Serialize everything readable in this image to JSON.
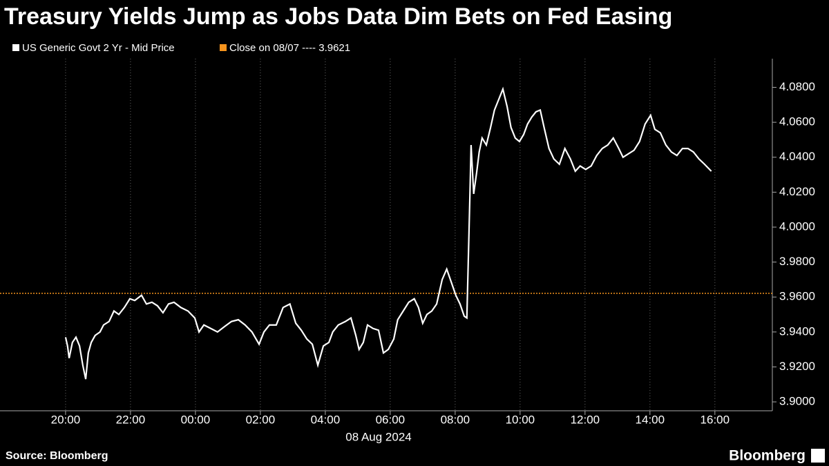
{
  "chart_data": {
    "type": "line",
    "title": "Treasury Yields Jump as Jobs Data Dim Bets on Fed Easing",
    "source": "Source: Bloomberg",
    "brand": "Bloomberg",
    "date_label": "08 Aug 2024",
    "x": [
      0,
      0.06,
      0.11,
      0.21,
      0.32,
      0.43,
      0.53,
      0.62,
      0.7,
      0.79,
      0.91,
      1.06,
      1.17,
      1.34,
      1.49,
      1.64,
      1.81,
      1.98,
      2.13,
      2.34,
      2.49,
      2.66,
      2.83,
      3.0,
      3.17,
      3.34,
      3.55,
      3.77,
      3.98,
      4.11,
      4.26,
      4.47,
      4.68,
      4.89,
      5.11,
      5.32,
      5.53,
      5.74,
      5.96,
      6.11,
      6.28,
      6.49,
      6.7,
      6.91,
      7.09,
      7.26,
      7.43,
      7.6,
      7.77,
      7.94,
      8.11,
      8.23,
      8.4,
      8.62,
      8.79,
      8.94,
      9.04,
      9.17,
      9.3,
      9.47,
      9.64,
      9.79,
      9.94,
      10.11,
      10.23,
      10.4,
      10.57,
      10.74,
      10.87,
      11.0,
      11.13,
      11.28,
      11.43,
      11.6,
      11.74,
      11.89,
      12.02,
      12.15,
      12.28,
      12.36,
      12.45,
      12.49,
      12.57,
      12.66,
      12.74,
      12.83,
      12.96,
      13.09,
      13.21,
      13.34,
      13.47,
      13.6,
      13.72,
      13.85,
      13.98,
      14.11,
      14.23,
      14.36,
      14.49,
      14.62,
      14.74,
      14.89,
      15.04,
      15.21,
      15.38,
      15.55,
      15.7,
      15.85,
      16.02,
      16.19,
      16.36,
      16.53,
      16.7,
      16.87,
      17.04,
      17.17,
      17.34,
      17.51,
      17.68,
      17.85,
      18.02,
      18.15,
      18.32,
      18.49,
      18.66,
      18.83,
      19.0,
      19.17,
      19.34,
      19.51,
      19.68,
      19.89
    ],
    "series": [
      {
        "name": "US Generic Govt 2 Yr - Mid Price",
        "color": "#ffffff",
        "values": [
          3.937,
          3.932,
          3.925,
          3.934,
          3.937,
          3.932,
          3.921,
          3.913,
          3.928,
          3.934,
          3.938,
          3.94,
          3.944,
          3.946,
          3.952,
          3.95,
          3.954,
          3.959,
          3.958,
          3.961,
          3.956,
          3.957,
          3.955,
          3.951,
          3.956,
          3.957,
          3.954,
          3.952,
          3.948,
          3.94,
          3.944,
          3.942,
          3.94,
          3.943,
          3.946,
          3.947,
          3.944,
          3.94,
          3.933,
          3.94,
          3.944,
          3.944,
          3.954,
          3.956,
          3.945,
          3.941,
          3.936,
          3.933,
          3.921,
          3.932,
          3.934,
          3.94,
          3.944,
          3.946,
          3.948,
          3.938,
          3.93,
          3.934,
          3.944,
          3.942,
          3.941,
          3.928,
          3.93,
          3.936,
          3.947,
          3.952,
          3.957,
          3.959,
          3.954,
          3.945,
          3.95,
          3.952,
          3.956,
          3.97,
          3.976,
          3.968,
          3.961,
          3.956,
          3.949,
          3.948,
          4.015,
          4.047,
          4.019,
          4.031,
          4.043,
          4.051,
          4.047,
          4.057,
          4.067,
          4.073,
          4.079,
          4.069,
          4.057,
          4.051,
          4.049,
          4.053,
          4.059,
          4.063,
          4.066,
          4.067,
          4.057,
          4.045,
          4.039,
          4.036,
          4.045,
          4.039,
          4.032,
          4.035,
          4.033,
          4.035,
          4.041,
          4.045,
          4.047,
          4.051,
          4.045,
          4.04,
          4.042,
          4.044,
          4.049,
          4.059,
          4.064,
          4.056,
          4.054,
          4.047,
          4.043,
          4.041,
          4.045,
          4.045,
          4.043,
          4.039,
          4.036,
          4.032
        ]
      }
    ],
    "reference_line": {
      "label": "Close on 08/07 ---- 3.9621",
      "value": 3.9621,
      "color": "#f7941d"
    },
    "xlim": [
      -2.02,
      21.77
    ],
    "xticks": [
      {
        "value": 0,
        "label": "20:00"
      },
      {
        "value": 2,
        "label": "22:00"
      },
      {
        "value": 4,
        "label": "00:00"
      },
      {
        "value": 6,
        "label": "02:00"
      },
      {
        "value": 8,
        "label": "04:00"
      },
      {
        "value": 10,
        "label": "06:00"
      },
      {
        "value": 12,
        "label": "08:00"
      },
      {
        "value": 14,
        "label": "10:00"
      },
      {
        "value": 16,
        "label": "12:00"
      },
      {
        "value": 18,
        "label": "14:00"
      },
      {
        "value": 20,
        "label": "16:00"
      }
    ],
    "ylim": [
      3.8949,
      4.0964
    ],
    "yticks": [
      {
        "value": 3.9,
        "label": "3.9000"
      },
      {
        "value": 3.92,
        "label": "3.9200"
      },
      {
        "value": 3.94,
        "label": "3.9400"
      },
      {
        "value": 3.96,
        "label": "3.9600"
      },
      {
        "value": 3.98,
        "label": "3.9800"
      },
      {
        "value": 4.0,
        "label": "4.0000"
      },
      {
        "value": 4.02,
        "label": "4.0200"
      },
      {
        "value": 4.04,
        "label": "4.0400"
      },
      {
        "value": 4.06,
        "label": "4.0600"
      },
      {
        "value": 4.08,
        "label": "4.0800"
      }
    ],
    "grid": "x"
  }
}
